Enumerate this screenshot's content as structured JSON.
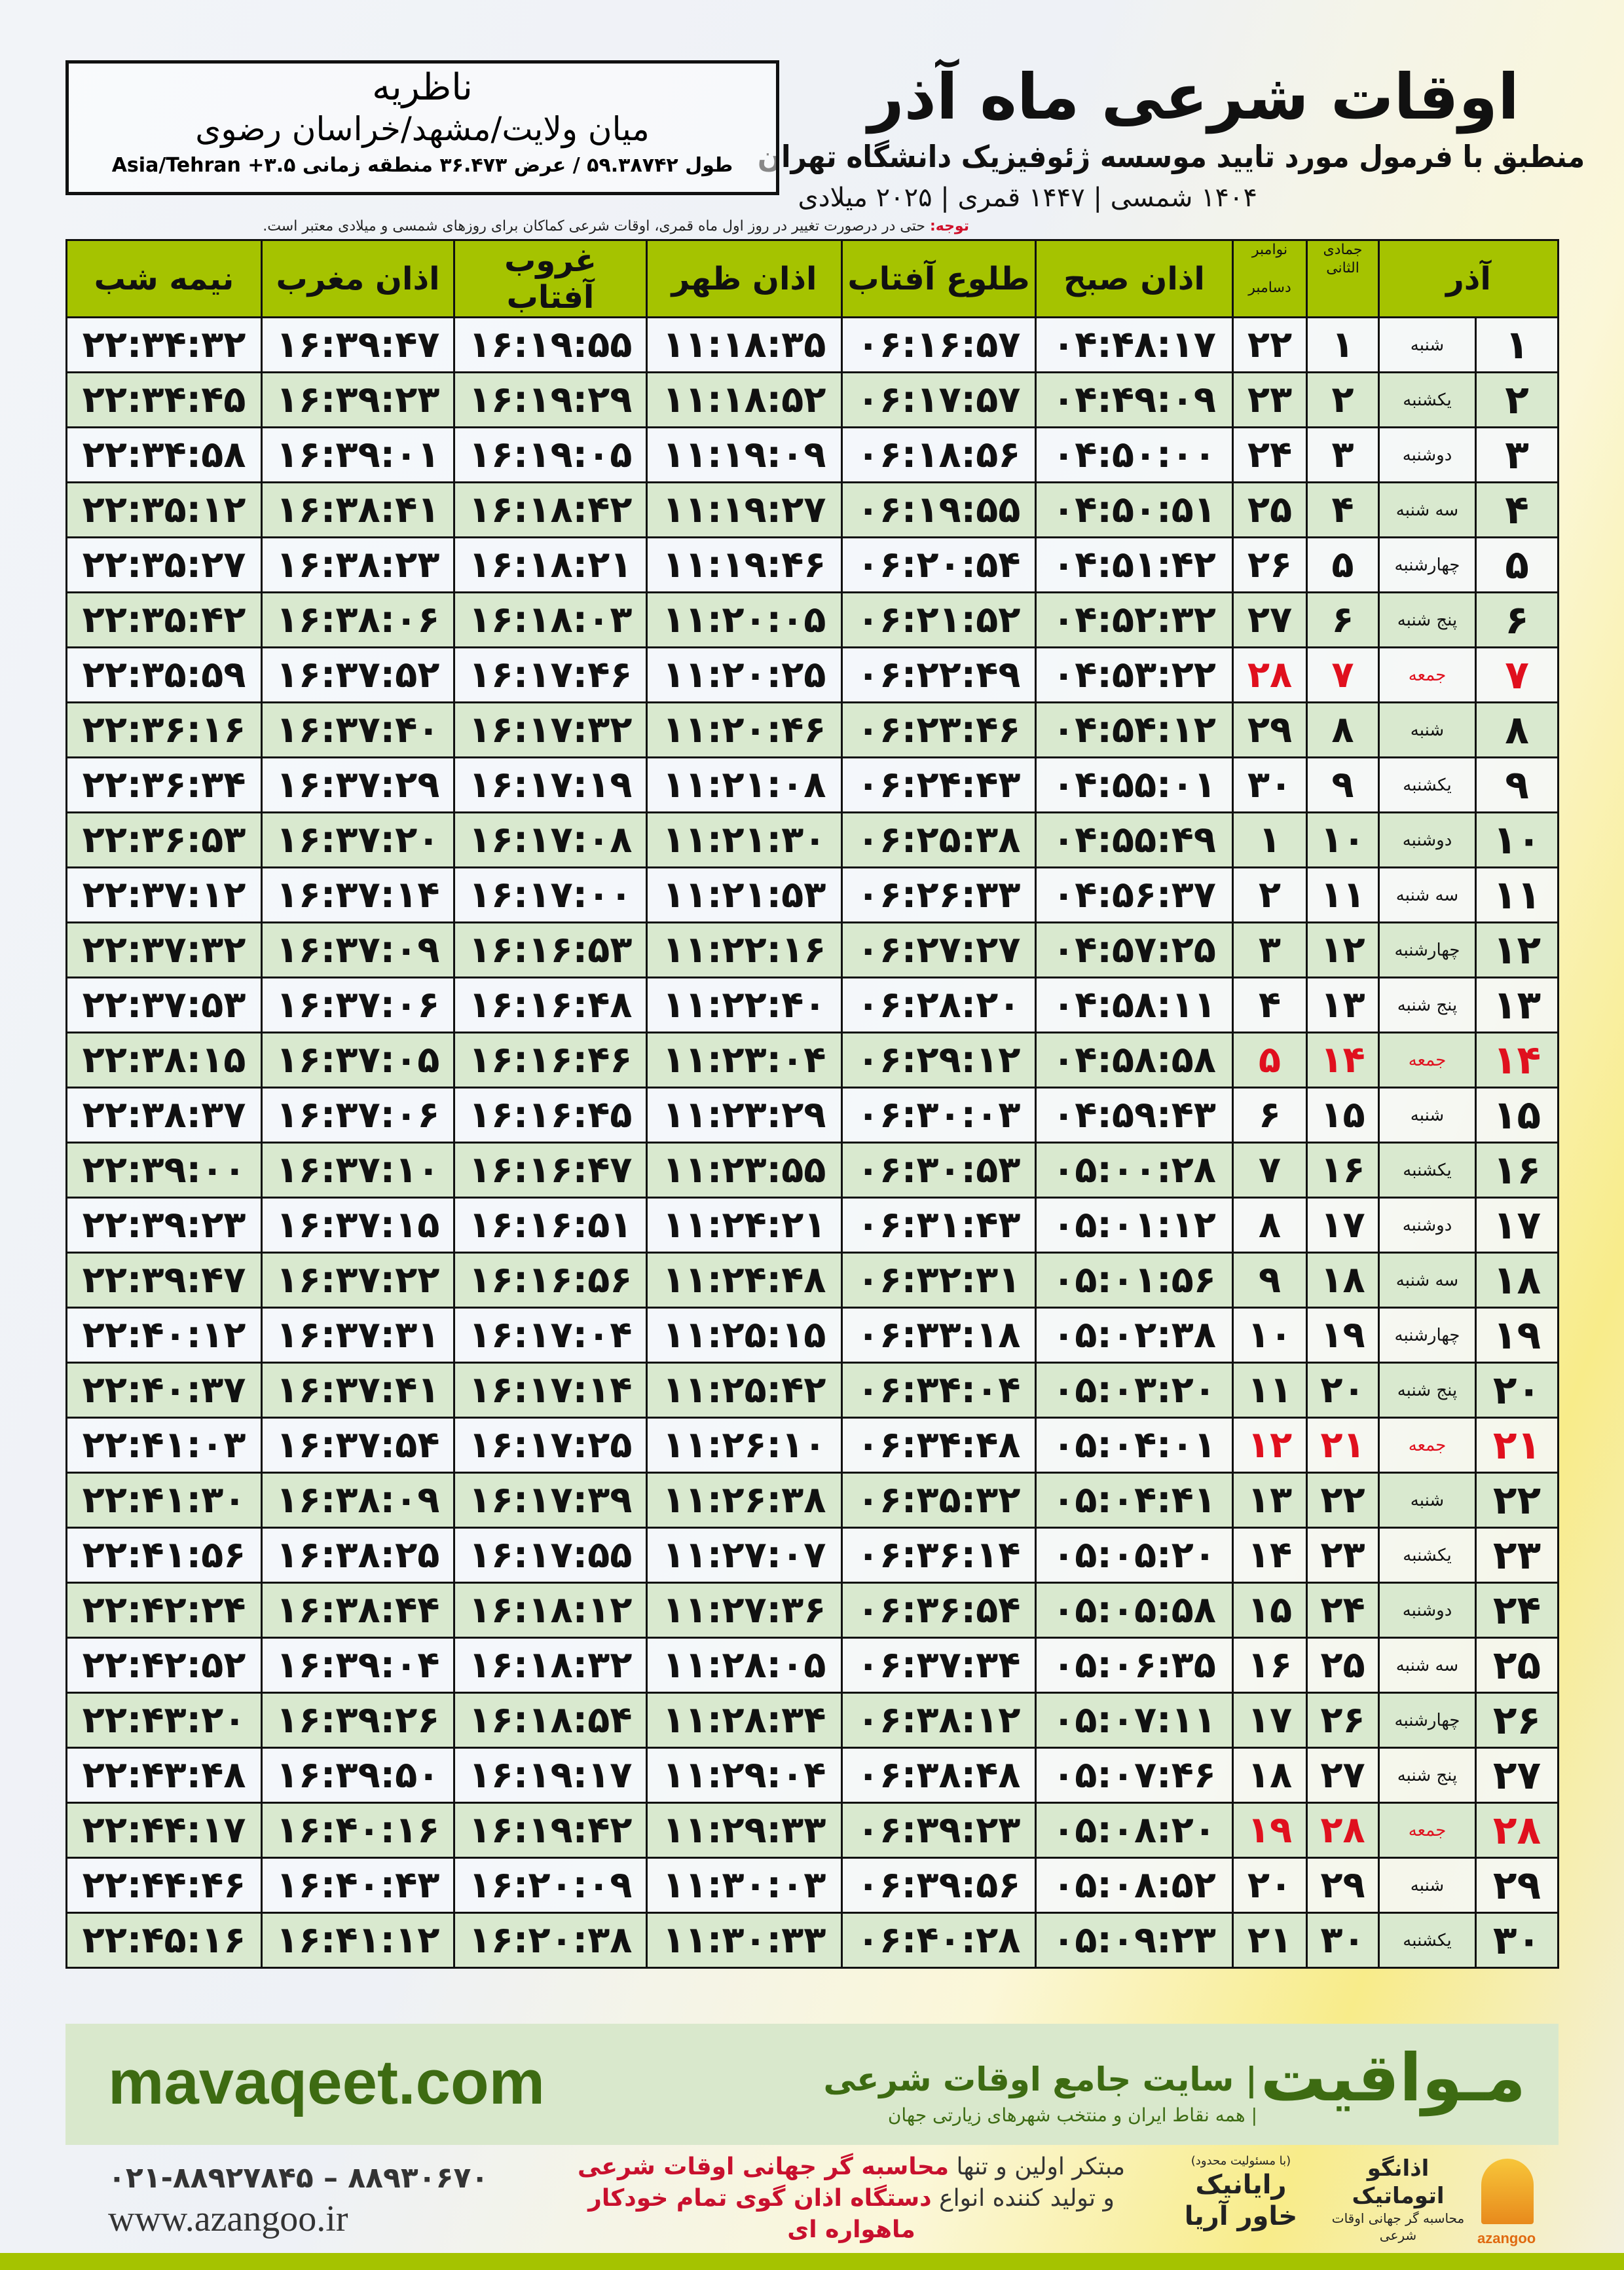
{
  "header": {
    "title": "اوقات شرعی ماه آذر",
    "subtitle": "منطبق با فرمول مورد تایید موسسه ژئوفیزیک دانشگاه تهران",
    "years": "۱۴۰۴ شمسی | ۱۴۴۷ قمری | ۲۰۲۵ میلادی"
  },
  "location": {
    "city": "ناظریه",
    "region": "میان ولایت/مشهد/خراسان رضوی",
    "coords": "طول ۵۹.۳۸۷۴۲ / عرض ۳۶.۴۷۳ منطقه زمانی ۳.۵+ Asia/Tehran"
  },
  "note": {
    "label": "توجه:",
    "text": " حتی در درصورت تغییر در روز اول ماه قمری، اوقات شرعی کماکان برای روزهای شمسی و میلادی معتبر است."
  },
  "table": {
    "headers": {
      "azar": "آذر",
      "hijri": "جمادی الثانی",
      "gregorian_top": "نوامبر",
      "gregorian_bottom": "دسامبر",
      "fajr": "اذان صبح",
      "sunrise": "طلوع آفتاب",
      "dhuhr": "اذان ظهر",
      "sunset": "غروب آفتاب",
      "maghrib": "اذان مغرب",
      "midnight": "نیمه شب"
    },
    "friday_color": "#e0101e",
    "header_color": "#a5c300",
    "rows": [
      [
        "۱",
        "شنبه",
        "۱",
        "۲۲",
        "۰۴:۴۸:۱۷",
        "۰۶:۱۶:۵۷",
        "۱۱:۱۸:۳۵",
        "۱۶:۱۹:۵۵",
        "۱۶:۳۹:۴۷",
        "۲۲:۳۴:۳۲"
      ],
      [
        "۲",
        "یکشنبه",
        "۲",
        "۲۳",
        "۰۴:۴۹:۰۹",
        "۰۶:۱۷:۵۷",
        "۱۱:۱۸:۵۲",
        "۱۶:۱۹:۲۹",
        "۱۶:۳۹:۲۳",
        "۲۲:۳۴:۴۵"
      ],
      [
        "۳",
        "دوشنبه",
        "۳",
        "۲۴",
        "۰۴:۵۰:۰۰",
        "۰۶:۱۸:۵۶",
        "۱۱:۱۹:۰۹",
        "۱۶:۱۹:۰۵",
        "۱۶:۳۹:۰۱",
        "۲۲:۳۴:۵۸"
      ],
      [
        "۴",
        "سه شنبه",
        "۴",
        "۲۵",
        "۰۴:۵۰:۵۱",
        "۰۶:۱۹:۵۵",
        "۱۱:۱۹:۲۷",
        "۱۶:۱۸:۴۲",
        "۱۶:۳۸:۴۱",
        "۲۲:۳۵:۱۲"
      ],
      [
        "۵",
        "چهارشنبه",
        "۵",
        "۲۶",
        "۰۴:۵۱:۴۲",
        "۰۶:۲۰:۵۴",
        "۱۱:۱۹:۴۶",
        "۱۶:۱۸:۲۱",
        "۱۶:۳۸:۲۳",
        "۲۲:۳۵:۲۷"
      ],
      [
        "۶",
        "پنج شنبه",
        "۶",
        "۲۷",
        "۰۴:۵۲:۳۲",
        "۰۶:۲۱:۵۲",
        "۱۱:۲۰:۰۵",
        "۱۶:۱۸:۰۳",
        "۱۶:۳۸:۰۶",
        "۲۲:۳۵:۴۲"
      ],
      [
        "۷",
        "جمعه",
        "۷",
        "۲۸",
        "۰۴:۵۳:۲۲",
        "۰۶:۲۲:۴۹",
        "۱۱:۲۰:۲۵",
        "۱۶:۱۷:۴۶",
        "۱۶:۳۷:۵۲",
        "۲۲:۳۵:۵۹"
      ],
      [
        "۸",
        "شنبه",
        "۸",
        "۲۹",
        "۰۴:۵۴:۱۲",
        "۰۶:۲۳:۴۶",
        "۱۱:۲۰:۴۶",
        "۱۶:۱۷:۳۲",
        "۱۶:۳۷:۴۰",
        "۲۲:۳۶:۱۶"
      ],
      [
        "۹",
        "یکشنبه",
        "۹",
        "۳۰",
        "۰۴:۵۵:۰۱",
        "۰۶:۲۴:۴۳",
        "۱۱:۲۱:۰۸",
        "۱۶:۱۷:۱۹",
        "۱۶:۳۷:۲۹",
        "۲۲:۳۶:۳۴"
      ],
      [
        "۱۰",
        "دوشنبه",
        "۱۰",
        "۱",
        "۰۴:۵۵:۴۹",
        "۰۶:۲۵:۳۸",
        "۱۱:۲۱:۳۰",
        "۱۶:۱۷:۰۸",
        "۱۶:۳۷:۲۰",
        "۲۲:۳۶:۵۳"
      ],
      [
        "۱۱",
        "سه شنبه",
        "۱۱",
        "۲",
        "۰۴:۵۶:۳۷",
        "۰۶:۲۶:۳۳",
        "۱۱:۲۱:۵۳",
        "۱۶:۱۷:۰۰",
        "۱۶:۳۷:۱۴",
        "۲۲:۳۷:۱۲"
      ],
      [
        "۱۲",
        "چهارشنبه",
        "۱۲",
        "۳",
        "۰۴:۵۷:۲۵",
        "۰۶:۲۷:۲۷",
        "۱۱:۲۲:۱۶",
        "۱۶:۱۶:۵۳",
        "۱۶:۳۷:۰۹",
        "۲۲:۳۷:۳۲"
      ],
      [
        "۱۳",
        "پنج شنبه",
        "۱۳",
        "۴",
        "۰۴:۵۸:۱۱",
        "۰۶:۲۸:۲۰",
        "۱۱:۲۲:۴۰",
        "۱۶:۱۶:۴۸",
        "۱۶:۳۷:۰۶",
        "۲۲:۳۷:۵۳"
      ],
      [
        "۱۴",
        "جمعه",
        "۱۴",
        "۵",
        "۰۴:۵۸:۵۸",
        "۰۶:۲۹:۱۲",
        "۱۱:۲۳:۰۴",
        "۱۶:۱۶:۴۶",
        "۱۶:۳۷:۰۵",
        "۲۲:۳۸:۱۵"
      ],
      [
        "۱۵",
        "شنبه",
        "۱۵",
        "۶",
        "۰۴:۵۹:۴۳",
        "۰۶:۳۰:۰۳",
        "۱۱:۲۳:۲۹",
        "۱۶:۱۶:۴۵",
        "۱۶:۳۷:۰۶",
        "۲۲:۳۸:۳۷"
      ],
      [
        "۱۶",
        "یکشنبه",
        "۱۶",
        "۷",
        "۰۵:۰۰:۲۸",
        "۰۶:۳۰:۵۳",
        "۱۱:۲۳:۵۵",
        "۱۶:۱۶:۴۷",
        "۱۶:۳۷:۱۰",
        "۲۲:۳۹:۰۰"
      ],
      [
        "۱۷",
        "دوشنبه",
        "۱۷",
        "۸",
        "۰۵:۰۱:۱۲",
        "۰۶:۳۱:۴۳",
        "۱۱:۲۴:۲۱",
        "۱۶:۱۶:۵۱",
        "۱۶:۳۷:۱۵",
        "۲۲:۳۹:۲۳"
      ],
      [
        "۱۸",
        "سه شنبه",
        "۱۸",
        "۹",
        "۰۵:۰۱:۵۶",
        "۰۶:۳۲:۳۱",
        "۱۱:۲۴:۴۸",
        "۱۶:۱۶:۵۶",
        "۱۶:۳۷:۲۲",
        "۲۲:۳۹:۴۷"
      ],
      [
        "۱۹",
        "چهارشنبه",
        "۱۹",
        "۱۰",
        "۰۵:۰۲:۳۸",
        "۰۶:۳۳:۱۸",
        "۱۱:۲۵:۱۵",
        "۱۶:۱۷:۰۴",
        "۱۶:۳۷:۳۱",
        "۲۲:۴۰:۱۲"
      ],
      [
        "۲۰",
        "پنج شنبه",
        "۲۰",
        "۱۱",
        "۰۵:۰۳:۲۰",
        "۰۶:۳۴:۰۴",
        "۱۱:۲۵:۴۲",
        "۱۶:۱۷:۱۴",
        "۱۶:۳۷:۴۱",
        "۲۲:۴۰:۳۷"
      ],
      [
        "۲۱",
        "جمعه",
        "۲۱",
        "۱۲",
        "۰۵:۰۴:۰۱",
        "۰۶:۳۴:۴۸",
        "۱۱:۲۶:۱۰",
        "۱۶:۱۷:۲۵",
        "۱۶:۳۷:۵۴",
        "۲۲:۴۱:۰۳"
      ],
      [
        "۲۲",
        "شنبه",
        "۲۲",
        "۱۳",
        "۰۵:۰۴:۴۱",
        "۰۶:۳۵:۳۲",
        "۱۱:۲۶:۳۸",
        "۱۶:۱۷:۳۹",
        "۱۶:۳۸:۰۹",
        "۲۲:۴۱:۳۰"
      ],
      [
        "۲۳",
        "یکشنبه",
        "۲۳",
        "۱۴",
        "۰۵:۰۵:۲۰",
        "۰۶:۳۶:۱۴",
        "۱۱:۲۷:۰۷",
        "۱۶:۱۷:۵۵",
        "۱۶:۳۸:۲۵",
        "۲۲:۴۱:۵۶"
      ],
      [
        "۲۴",
        "دوشنبه",
        "۲۴",
        "۱۵",
        "۰۵:۰۵:۵۸",
        "۰۶:۳۶:۵۴",
        "۱۱:۲۷:۳۶",
        "۱۶:۱۸:۱۲",
        "۱۶:۳۸:۴۴",
        "۲۲:۴۲:۲۴"
      ],
      [
        "۲۵",
        "سه شنبه",
        "۲۵",
        "۱۶",
        "۰۵:۰۶:۳۵",
        "۰۶:۳۷:۳۴",
        "۱۱:۲۸:۰۵",
        "۱۶:۱۸:۳۲",
        "۱۶:۳۹:۰۴",
        "۲۲:۴۲:۵۲"
      ],
      [
        "۲۶",
        "چهارشنبه",
        "۲۶",
        "۱۷",
        "۰۵:۰۷:۱۱",
        "۰۶:۳۸:۱۲",
        "۱۱:۲۸:۳۴",
        "۱۶:۱۸:۵۴",
        "۱۶:۳۹:۲۶",
        "۲۲:۴۳:۲۰"
      ],
      [
        "۲۷",
        "پنج شنبه",
        "۲۷",
        "۱۸",
        "۰۵:۰۷:۴۶",
        "۰۶:۳۸:۴۸",
        "۱۱:۲۹:۰۴",
        "۱۶:۱۹:۱۷",
        "۱۶:۳۹:۵۰",
        "۲۲:۴۳:۴۸"
      ],
      [
        "۲۸",
        "جمعه",
        "۲۸",
        "۱۹",
        "۰۵:۰۸:۲۰",
        "۰۶:۳۹:۲۳",
        "۱۱:۲۹:۳۳",
        "۱۶:۱۹:۴۲",
        "۱۶:۴۰:۱۶",
        "۲۲:۴۴:۱۷"
      ],
      [
        "۲۹",
        "شنبه",
        "۲۹",
        "۲۰",
        "۰۵:۰۸:۵۲",
        "۰۶:۳۹:۵۶",
        "۱۱:۳۰:۰۳",
        "۱۶:۲۰:۰۹",
        "۱۶:۴۰:۴۳",
        "۲۲:۴۴:۴۶"
      ],
      [
        "۳۰",
        "یکشنبه",
        "۳۰",
        "۲۱",
        "۰۵:۰۹:۲۳",
        "۰۶:۴۰:۲۸",
        "۱۱:۳۰:۳۳",
        "۱۶:۲۰:۳۸",
        "۱۶:۴۱:۱۲",
        "۲۲:۴۵:۱۶"
      ]
    ]
  },
  "footer": {
    "brand": "مـواقیت",
    "tagline": "| سایت جامع اوقات شرعی",
    "tagline2": "| همه نقاط ایران و منتخب شهرهای زیارتی جهان",
    "site": "mavaqeet.com",
    "phones": "۰۲۱-۸۸۹۲۷۸۴۵ – ۸۸۹۳۰۶۷۰",
    "www": "www.azangoo.ir",
    "promo_1a": "مبتکر اولین و تنها ",
    "promo_1b": "محاسبه گر جهانی اوقات شرعی",
    "promo_2a": "و تولید کننده انواع ",
    "promo_2b": "دستگاه اذان گوی تمام خودکار ماهواره ای",
    "logo_rayanik": "رایانیک خاور آریا",
    "logo_rayanik_small": "(با مسئولیت محدود)",
    "logo_azangoo": "اذانگو اتوماتیک",
    "logo_azangoo_sub": "محاسبه گر جهانی اوقات شرعی",
    "logo_azangoo_en": "azangoo"
  }
}
